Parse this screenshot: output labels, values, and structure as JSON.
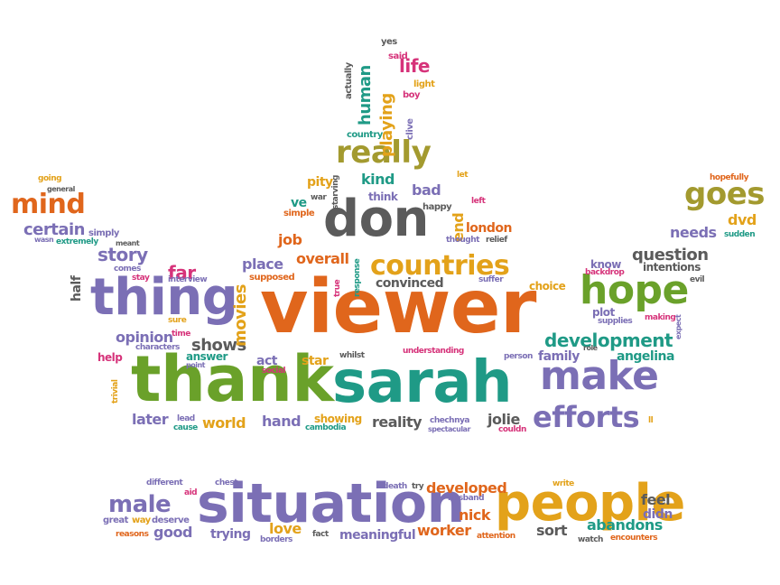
{
  "words": [
    {
      "text": "viewer",
      "color": "orange"
    },
    {
      "text": "thank",
      "color": "green"
    },
    {
      "text": "sarah",
      "color": "teal"
    },
    {
      "text": "situation",
      "color": "purple"
    },
    {
      "text": "people",
      "color": "gold"
    },
    {
      "text": "don",
      "color": "gray"
    },
    {
      "text": "thing",
      "color": "purple"
    },
    {
      "text": "hope",
      "color": "green"
    },
    {
      "text": "make",
      "color": "purple"
    },
    {
      "text": "countries",
      "color": "gold"
    },
    {
      "text": "really",
      "color": "olive"
    },
    {
      "text": "efforts",
      "color": "purple"
    },
    {
      "text": "goes",
      "color": "olive"
    },
    {
      "text": "mind",
      "color": "orange"
    },
    {
      "text": "male",
      "color": "purple"
    },
    {
      "text": "development",
      "color": "teal"
    },
    {
      "text": "story",
      "color": "purple"
    },
    {
      "text": "certain",
      "color": "purple"
    },
    {
      "text": "opinion",
      "color": "purple"
    },
    {
      "text": "shows",
      "color": "gray"
    },
    {
      "text": "place",
      "color": "purple"
    },
    {
      "text": "overall",
      "color": "orange"
    },
    {
      "text": "question",
      "color": "gray"
    },
    {
      "text": "needs",
      "color": "purple"
    },
    {
      "text": "dvd",
      "color": "gold"
    },
    {
      "text": "later",
      "color": "purple"
    },
    {
      "text": "world",
      "color": "gold"
    },
    {
      "text": "hand",
      "color": "purple"
    },
    {
      "text": "reality",
      "color": "gray"
    },
    {
      "text": "jolie",
      "color": "gray"
    },
    {
      "text": "love",
      "color": "gold"
    },
    {
      "text": "good",
      "color": "purple"
    },
    {
      "text": "trying",
      "color": "purple"
    },
    {
      "text": "meaningful",
      "color": "purple"
    },
    {
      "text": "worker",
      "color": "orange"
    },
    {
      "text": "nick",
      "color": "orange"
    },
    {
      "text": "developed",
      "color": "orange"
    },
    {
      "text": "sort",
      "color": "gray"
    },
    {
      "text": "abandons",
      "color": "teal"
    },
    {
      "text": "feel",
      "color": "gray"
    },
    {
      "text": "didn",
      "color": "purple"
    },
    {
      "text": "job",
      "color": "orange"
    },
    {
      "text": "far",
      "color": "pink"
    },
    {
      "text": "movies",
      "color": "gold"
    },
    {
      "text": "act",
      "color": "purple"
    },
    {
      "text": "star",
      "color": "gold"
    },
    {
      "text": "kind",
      "color": "teal"
    },
    {
      "text": "bad",
      "color": "purple"
    },
    {
      "text": "london",
      "color": "orange"
    },
    {
      "text": "pity",
      "color": "gold"
    },
    {
      "text": "ve",
      "color": "teal"
    },
    {
      "text": "end",
      "color": "gold"
    },
    {
      "text": "human",
      "color": "teal"
    },
    {
      "text": "playing",
      "color": "gold"
    },
    {
      "text": "life",
      "color": "pink"
    },
    {
      "text": "convinced",
      "color": "gray"
    },
    {
      "text": "angelina",
      "color": "teal"
    },
    {
      "text": "family",
      "color": "purple"
    },
    {
      "text": "showing",
      "color": "gold"
    },
    {
      "text": "know",
      "color": "purple"
    },
    {
      "text": "intentions",
      "color": "gray"
    },
    {
      "text": "half",
      "color": "gray"
    },
    {
      "text": "help",
      "color": "pink"
    },
    {
      "text": "think",
      "color": "purple"
    },
    {
      "text": "choice",
      "color": "gold"
    },
    {
      "text": "plot",
      "color": "purple"
    },
    {
      "text": "answer",
      "color": "teal"
    },
    {
      "text": "yes",
      "color": "gray"
    },
    {
      "text": "said",
      "color": "pink"
    },
    {
      "text": "light",
      "color": "gold"
    },
    {
      "text": "boy",
      "color": "pink"
    },
    {
      "text": "actually",
      "color": "gray"
    },
    {
      "text": "clive",
      "color": "purple"
    },
    {
      "text": "country",
      "color": "teal"
    },
    {
      "text": "starving",
      "color": "gray"
    },
    {
      "text": "war",
      "color": "gray"
    },
    {
      "text": "simple",
      "color": "orange"
    },
    {
      "text": "happy",
      "color": "gray"
    },
    {
      "text": "let",
      "color": "gold"
    },
    {
      "text": "left",
      "color": "pink"
    },
    {
      "text": "thought",
      "color": "purple"
    },
    {
      "text": "relief",
      "color": "gray"
    },
    {
      "text": "true",
      "color": "pink"
    },
    {
      "text": "response",
      "color": "teal"
    },
    {
      "text": "suffer",
      "color": "purple"
    },
    {
      "text": "supposed",
      "color": "orange"
    },
    {
      "text": "understanding",
      "color": "pink"
    },
    {
      "text": "person",
      "color": "purple"
    },
    {
      "text": "whilst",
      "color": "gray"
    },
    {
      "text": "social",
      "color": "pink"
    },
    {
      "text": "chechnya",
      "color": "purple"
    },
    {
      "text": "spectacular",
      "color": "purple"
    },
    {
      "text": "couldn",
      "color": "pink"
    },
    {
      "text": "cambodia",
      "color": "teal"
    },
    {
      "text": "lead",
      "color": "purple"
    },
    {
      "text": "cause",
      "color": "teal"
    },
    {
      "text": "trivial",
      "color": "gold"
    },
    {
      "text": "point",
      "color": "purple"
    },
    {
      "text": "characters",
      "color": "purple"
    },
    {
      "text": "time",
      "color": "pink"
    },
    {
      "text": "sure",
      "color": "gold"
    },
    {
      "text": "interview",
      "color": "purple"
    },
    {
      "text": "stay",
      "color": "pink"
    },
    {
      "text": "comes",
      "color": "purple"
    },
    {
      "text": "meant",
      "color": "gray"
    },
    {
      "text": "simply",
      "color": "purple"
    },
    {
      "text": "extremely",
      "color": "teal"
    },
    {
      "text": "wasn",
      "color": "purple"
    },
    {
      "text": "general",
      "color": "gray"
    },
    {
      "text": "going",
      "color": "gold"
    },
    {
      "text": "hopefully",
      "color": "orange"
    },
    {
      "text": "sudden",
      "color": "teal"
    },
    {
      "text": "evil",
      "color": "gray"
    },
    {
      "text": "backdrop",
      "color": "pink"
    },
    {
      "text": "supplies",
      "color": "purple"
    },
    {
      "text": "making",
      "color": "pink"
    },
    {
      "text": "expect",
      "color": "purple"
    },
    {
      "text": "role",
      "color": "gray"
    },
    {
      "text": "ll",
      "color": "gold"
    },
    {
      "text": "different",
      "color": "purple"
    },
    {
      "text": "aid",
      "color": "pink"
    },
    {
      "text": "chest",
      "color": "purple"
    },
    {
      "text": "great",
      "color": "purple"
    },
    {
      "text": "way",
      "color": "gold"
    },
    {
      "text": "deserve",
      "color": "purple"
    },
    {
      "text": "reasons",
      "color": "orange"
    },
    {
      "text": "borders",
      "color": "purple"
    },
    {
      "text": "fact",
      "color": "gray"
    },
    {
      "text": "death",
      "color": "purple"
    },
    {
      "text": "try",
      "color": "gray"
    },
    {
      "text": "husband",
      "color": "purple"
    },
    {
      "text": "attention",
      "color": "orange"
    },
    {
      "text": "write",
      "color": "gold"
    },
    {
      "text": "watch",
      "color": "gray"
    },
    {
      "text": "encounters",
      "color": "orange"
    }
  ]
}
